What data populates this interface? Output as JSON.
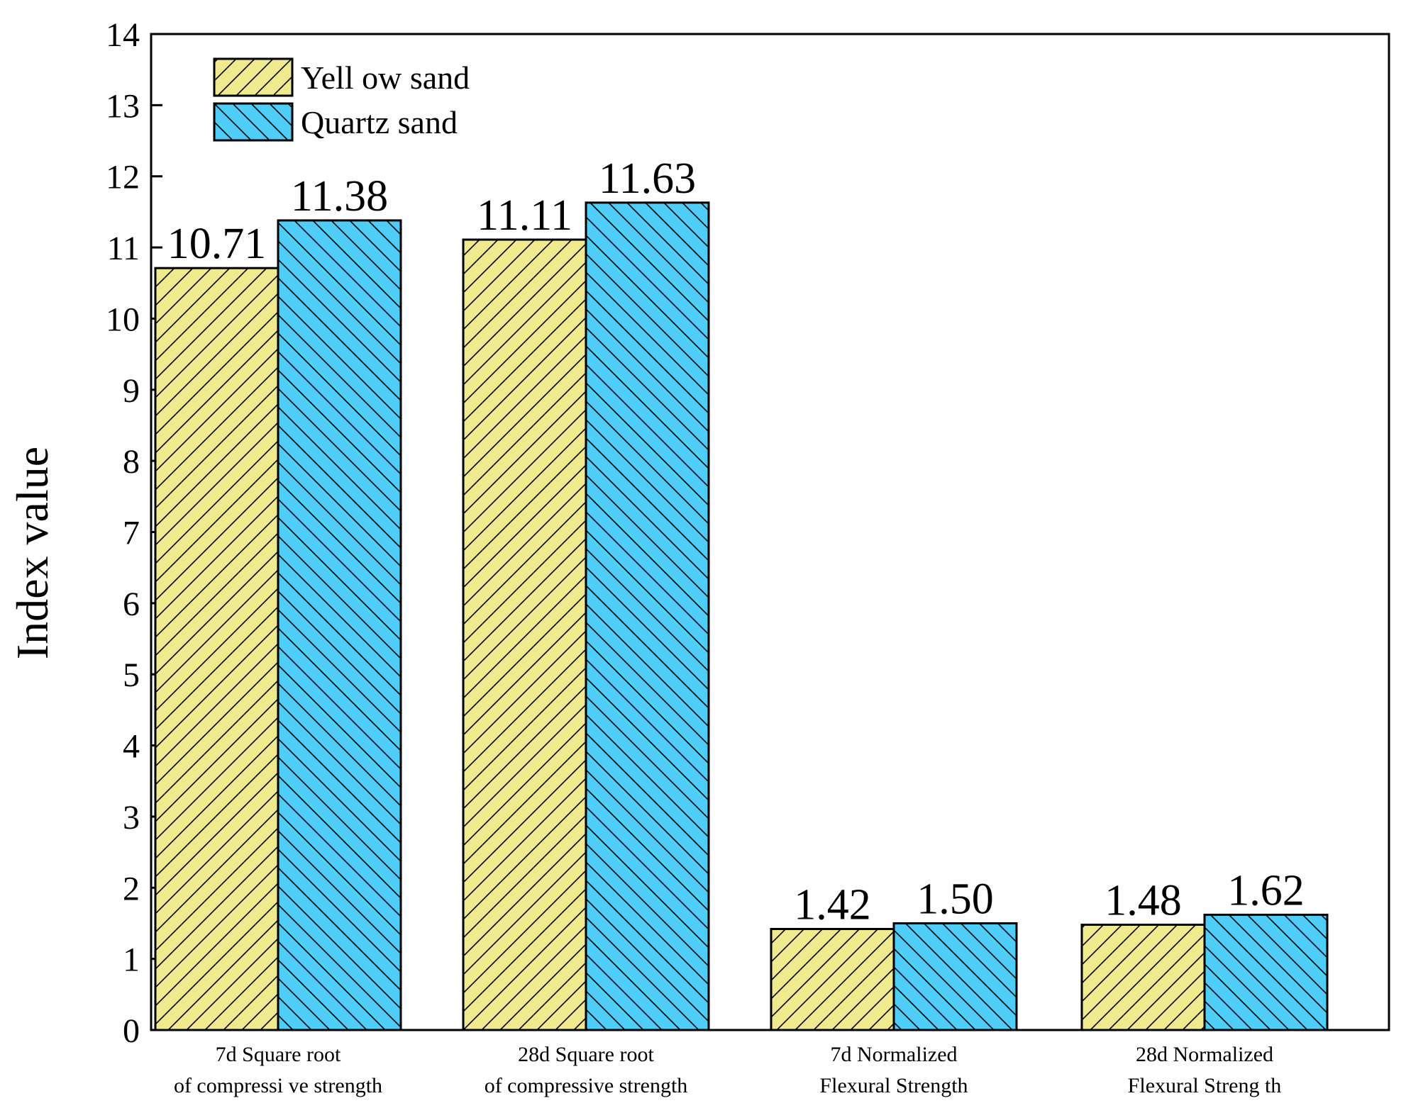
{
  "chart_data": {
    "type": "bar",
    "title": "",
    "xlabel": "",
    "ylabel": "Index value",
    "ylim": [
      0,
      14
    ],
    "yticks": [
      0,
      1,
      2,
      3,
      4,
      5,
      6,
      7,
      8,
      9,
      10,
      11,
      12,
      13,
      14
    ],
    "categories": [
      [
        "7d  Square root",
        "of compressi ve strength"
      ],
      [
        "28d  Square root",
        "of compressive strength"
      ],
      [
        "7d Normalized",
        "Flexural Strength"
      ],
      [
        "28d Normalized",
        "Flexural Streng th"
      ]
    ],
    "series": [
      {
        "name": "Yell ow sand",
        "color": "#f0ea8f",
        "hatch": "forward",
        "values": [
          10.71,
          11.11,
          1.42,
          1.48
        ],
        "labels": [
          "10.71",
          "11.11",
          "1.42",
          "1.48"
        ]
      },
      {
        "name": "Quartz sand",
        "color": "#4fcdf7",
        "hatch": "back",
        "values": [
          11.38,
          11.63,
          1.5,
          1.62
        ],
        "labels": [
          "11.38",
          "11.63",
          "1.50",
          "1.62"
        ]
      }
    ],
    "legend_position": "top-left",
    "grid": false
  }
}
